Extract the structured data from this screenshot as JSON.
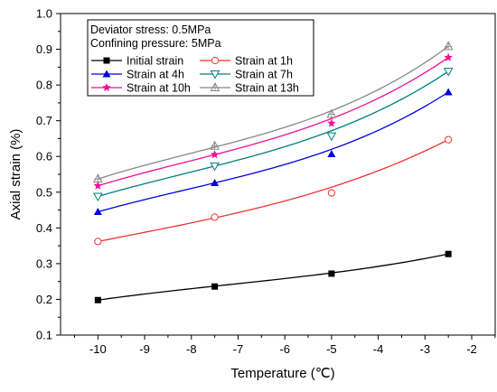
{
  "chart_data": {
    "type": "scatter",
    "xlabel": "Temperature (℃)",
    "ylabel": "Axial strain (%)",
    "xlim": [
      -10.8,
      -1.6
    ],
    "ylim": [
      0.1,
      1.0
    ],
    "x_ticks": [
      "-10",
      "-9",
      "-8",
      "-7",
      "-6",
      "-5",
      "-4",
      "-3",
      "-2"
    ],
    "y_ticks": [
      "0.1",
      "0.2",
      "0.3",
      "0.4",
      "0.5",
      "0.6",
      "0.7",
      "0.8",
      "0.9",
      "1.0"
    ],
    "annotations": [
      "Deviator stress: 0.5MPa",
      "Confining pressure: 5MPa"
    ],
    "legend_position": "top-left",
    "grid": false,
    "x": [
      -10,
      -7.5,
      -5,
      -2.5
    ],
    "series": [
      {
        "name": "Initial strain",
        "values": [
          0.198,
          0.236,
          0.272,
          0.327
        ],
        "fit": [
          0.198,
          0.237,
          0.274,
          0.327
        ],
        "color": "#000000",
        "marker": "square-filled"
      },
      {
        "name": "Strain at 1h",
        "values": [
          0.362,
          0.43,
          0.498,
          0.647
        ],
        "fit": [
          0.362,
          0.428,
          0.514,
          0.647
        ],
        "color": "#ee3333",
        "marker": "circle-open"
      },
      {
        "name": "Strain at 4h",
        "values": [
          0.445,
          0.526,
          0.607,
          0.78
        ],
        "fit": [
          0.445,
          0.526,
          0.62,
          0.78
        ],
        "color": "#0000dd",
        "marker": "triangle-up-filled"
      },
      {
        "name": "Strain at 7h",
        "values": [
          0.488,
          0.573,
          0.657,
          0.838
        ],
        "fit": [
          0.488,
          0.573,
          0.672,
          0.838
        ],
        "color": "#008080",
        "marker": "triangle-down-open"
      },
      {
        "name": "Strain at 10h",
        "values": [
          0.518,
          0.605,
          0.693,
          0.877
        ],
        "fit": [
          0.518,
          0.605,
          0.706,
          0.877
        ],
        "color": "#ee1199",
        "marker": "star-filled"
      },
      {
        "name": "Strain at 13h",
        "values": [
          0.537,
          0.629,
          0.718,
          0.908
        ],
        "fit": [
          0.537,
          0.626,
          0.728,
          0.908
        ],
        "color": "#888888",
        "marker": "triangle-up-open-star"
      }
    ]
  }
}
